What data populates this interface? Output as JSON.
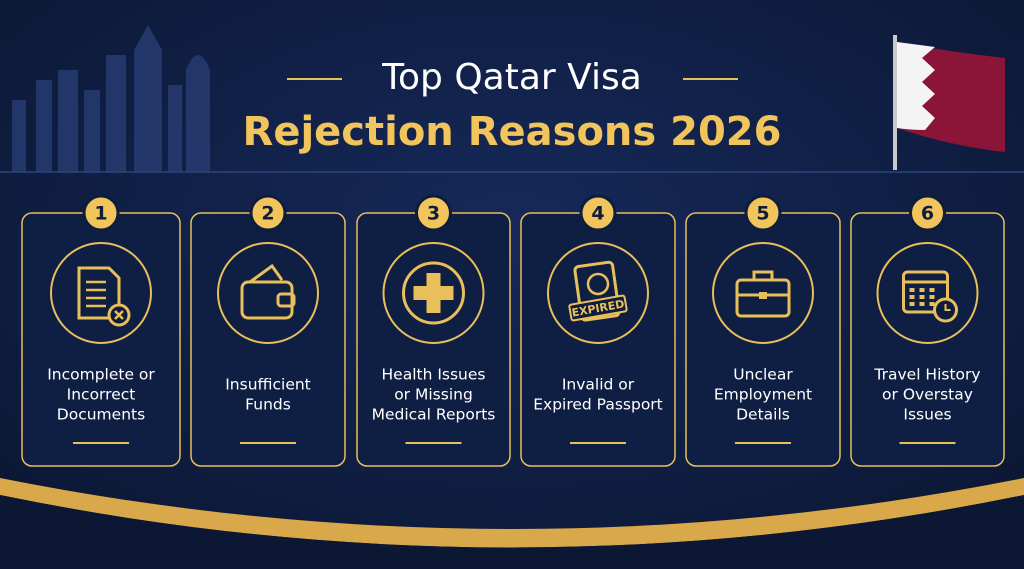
{
  "header": {
    "title_line1": "Top Qatar Visa",
    "title_line2": "Rejection Reasons 2026"
  },
  "cards": [
    {
      "number": "1",
      "label": [
        "Incomplete or",
        "Incorrect",
        "Documents"
      ]
    },
    {
      "number": "2",
      "label": [
        "Insufficient",
        "Funds"
      ]
    },
    {
      "number": "3",
      "label": [
        "Health Issues",
        "or Missing",
        "Medical Reports"
      ]
    },
    {
      "number": "4",
      "label": [
        "Invalid or",
        "Expired Passport"
      ],
      "icon_text": "EXPIRED"
    },
    {
      "number": "5",
      "label": [
        "Unclear",
        "Employment",
        "Details"
      ]
    },
    {
      "number": "6",
      "label": [
        "Travel History",
        "or Overstay",
        "Issues"
      ]
    }
  ]
}
